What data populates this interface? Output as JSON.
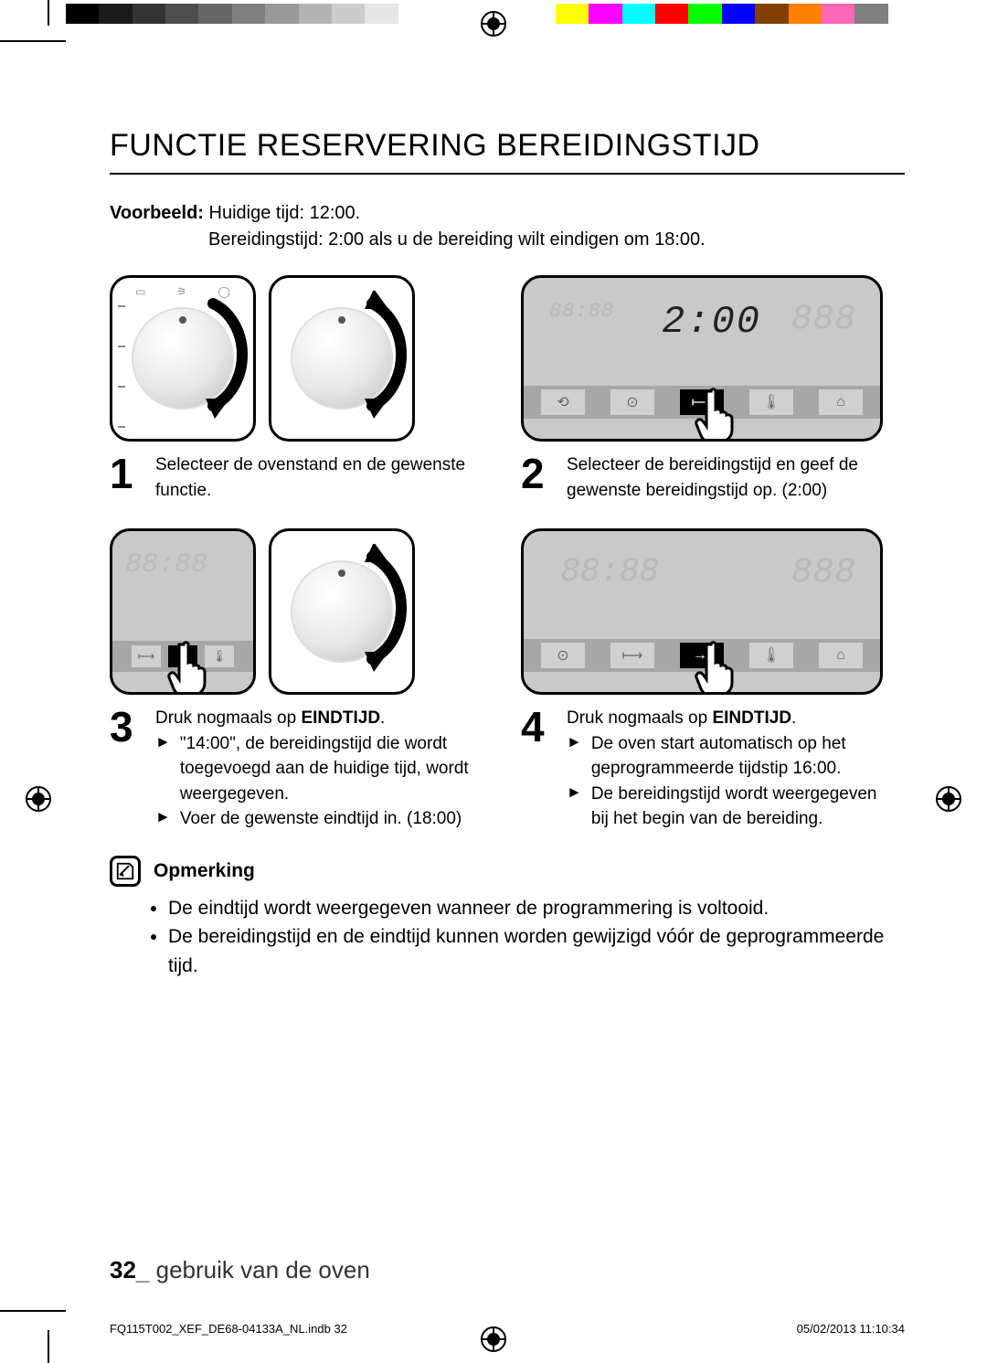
{
  "colorbar": {
    "grays": [
      "#000000",
      "#1a1a1a",
      "#333333",
      "#4d4d4d",
      "#666666",
      "#808080",
      "#999999",
      "#b3b3b3",
      "#cccccc",
      "#e6e6e6",
      "#ffffff"
    ],
    "colors": [
      "#ffff00",
      "#ff00ff",
      "#00ffff",
      "#ff0000",
      "#00ff00",
      "#0000ff",
      "#804000",
      "#ff8000",
      "#ff66b3",
      "#808080",
      "#ffffff"
    ]
  },
  "title": "FUNCTIE RESERVERING BEREIDINGSTIJD",
  "example": {
    "label": "Voorbeeld:",
    "line1": "Huidige tijd: 12:00.",
    "line2": "Bereidingstijd: 2:00 als u de bereiding wilt eindigen om 18:00."
  },
  "steps": {
    "s1": {
      "num": "1",
      "text": "Selecteer de ovenstand en de gewenste functie."
    },
    "s2": {
      "num": "2",
      "text": "Selecteer de bereidingstijd en geef de gewenste bereidingstijd op. (2:00)"
    },
    "s3": {
      "num": "3",
      "line1_pre": "Druk nogmaals op ",
      "line1_bold": "EINDTIJD",
      "line1_post": ".",
      "b1": "\"14:00\", de bereidingstijd die wordt toegevoegd aan de huidige tijd, wordt weergegeven.",
      "b2": "Voer de gewenste eindtijd in. (18:00)"
    },
    "s4": {
      "num": "4",
      "line1_pre": "Druk nogmaals op ",
      "line1_bold": "EINDTIJD",
      "line1_post": ".",
      "b1": "De oven start automatisch op het geprogrammeerde tijdstip 16:00.",
      "b2": "De bereidingstijd wordt weergegeven bij het begin van de bereiding."
    }
  },
  "panel": {
    "time_display": "2:00",
    "ghost_left": "88:88",
    "ghost_right": "888",
    "ghost_big": "88:88"
  },
  "note": {
    "title": "Opmerking",
    "items": [
      "De eindtijd wordt weergegeven wanneer de programmering is voltooid.",
      "De bereidingstijd en de eindtijd kunnen worden gewijzigd vóór de geprogrammeerde tijd."
    ]
  },
  "footer": {
    "page_num": "32",
    "sep": "_",
    "section": "gebruik van de oven"
  },
  "print_footer": {
    "left": "FQ115T002_XEF_DE68-04133A_NL.indb   32",
    "right": "05/02/2013   11:10:34"
  }
}
